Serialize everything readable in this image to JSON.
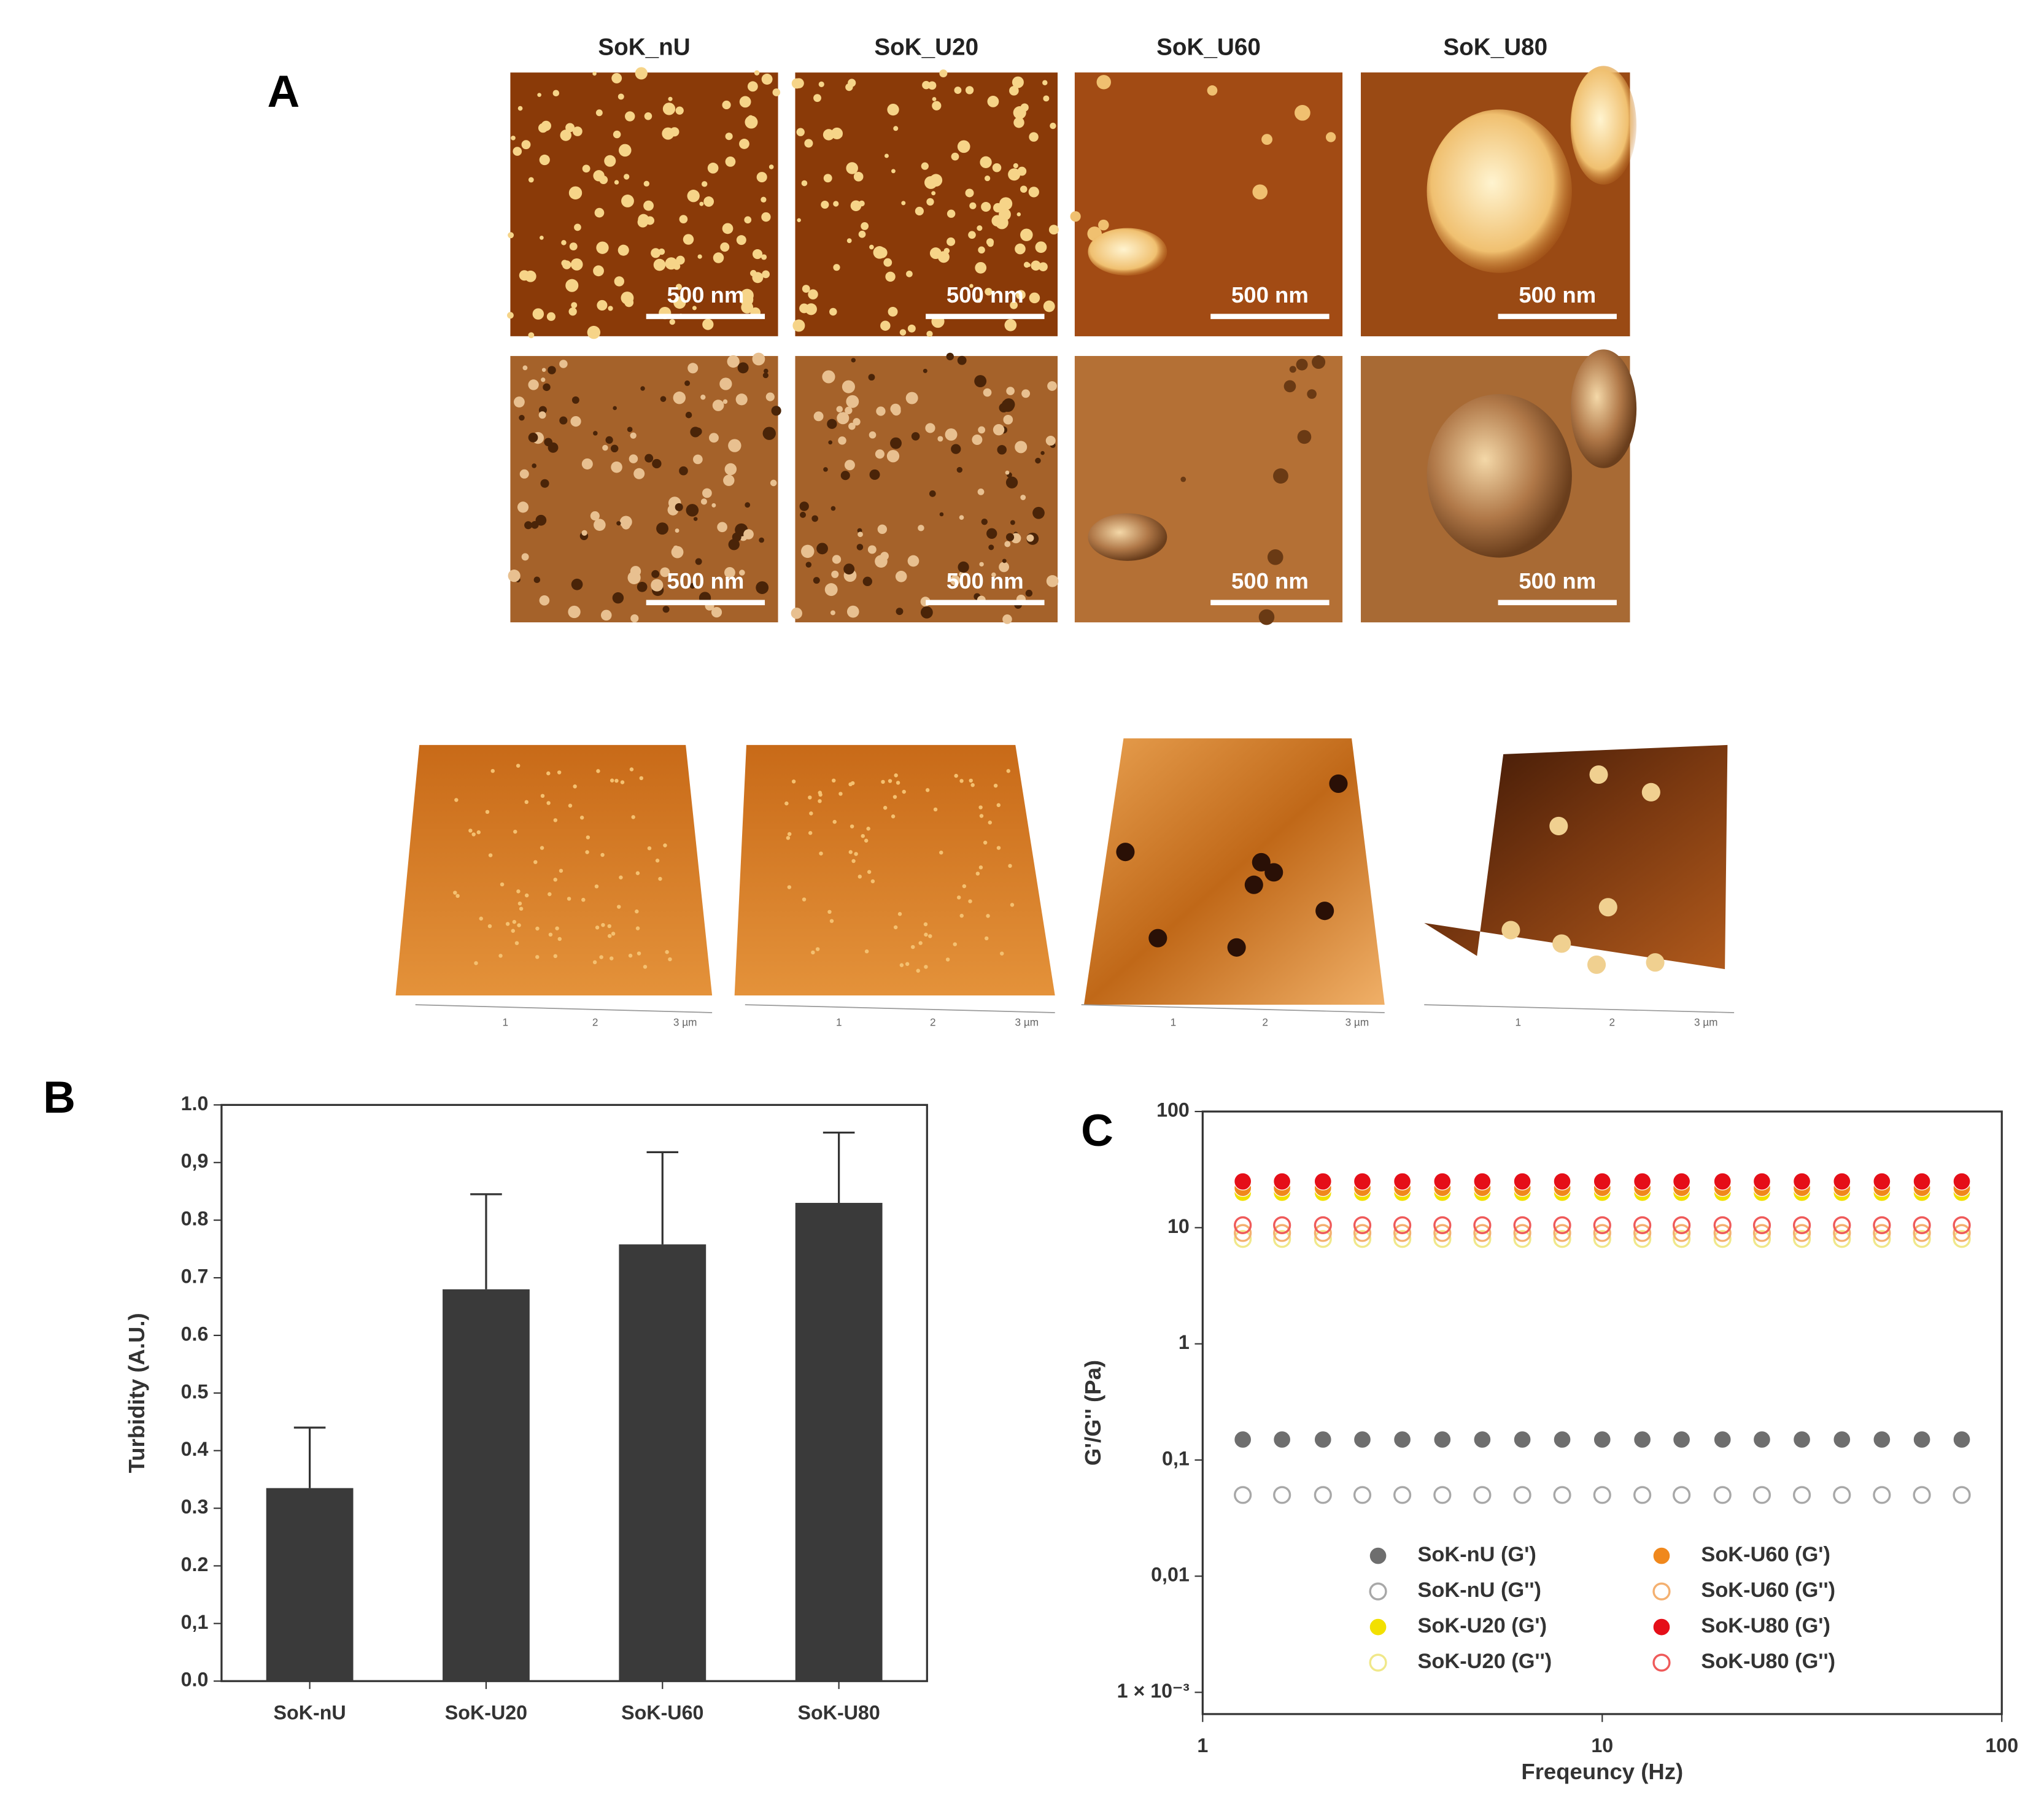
{
  "panel_a": {
    "label": "A",
    "columns": [
      "SoK_nU",
      "SoK_U20",
      "SoK_U60",
      "SoK_U80"
    ],
    "scale_bar": "500 nm",
    "axis_ticks_3d": [
      "1",
      "2",
      "3 µm"
    ]
  },
  "chart_data": [
    {
      "type": "bar",
      "panel_label": "B",
      "y_label": "Turbidity (A.U.)",
      "categories": [
        "SoK-nU",
        "SoK-U20",
        "SoK-U60",
        "SoK-U80"
      ],
      "values": [
        0.335,
        0.68,
        0.758,
        0.83
      ],
      "errors": [
        0.105,
        0.165,
        0.16,
        0.122
      ],
      "color": "#3a3a3a",
      "ylim": [
        0,
        1
      ],
      "yticks": [
        {
          "value": 0,
          "label": "0.0"
        },
        {
          "value": 0.1,
          "label": "0,1"
        },
        0.2,
        0.3,
        0.4,
        0.5,
        0.6,
        0.7,
        0.8,
        {
          "value": 0.9,
          "label": "0,9"
        },
        {
          "value": 1,
          "label": "1.0"
        }
      ]
    },
    {
      "type": "scatter",
      "panel_label": "C",
      "x_label": "Freqeuncy (Hz)",
      "y_label": "G'/G'' (Pa)",
      "log_x": true,
      "log_y": true,
      "xlim": [
        1,
        100
      ],
      "xticks": [
        1,
        10,
        100
      ],
      "ylim": [
        0.00065,
        100
      ],
      "yticks": [
        {
          "value": 0.001,
          "label": "1 × 10⁻³"
        },
        {
          "value": 0.01,
          "label": "0,01"
        },
        {
          "value": 0.1,
          "label": "0,1"
        },
        1,
        10,
        100
      ],
      "x": [
        1.26,
        1.58,
        2,
        2.51,
        3.16,
        3.98,
        5.01,
        6.31,
        7.94,
        10,
        12.6,
        15.8,
        20,
        25.1,
        31.6,
        39.8,
        50.1,
        63.1,
        79.4
      ],
      "series": [
        {
          "name": "SoK-nU (G')",
          "color": "#6e6e6e",
          "filled": true,
          "values": [
            0.15,
            0.15,
            0.15,
            0.15,
            0.15,
            0.15,
            0.15,
            0.15,
            0.15,
            0.15,
            0.15,
            0.15,
            0.15,
            0.15,
            0.15,
            0.15,
            0.15,
            0.15,
            0.15
          ]
        },
        {
          "name": "SoK-nU (G'')",
          "color": "#a8a8a8",
          "filled": false,
          "values": [
            0.05,
            0.05,
            0.05,
            0.05,
            0.05,
            0.05,
            0.05,
            0.05,
            0.05,
            0.05,
            0.05,
            0.05,
            0.05,
            0.05,
            0.05,
            0.05,
            0.05,
            0.05,
            0.05
          ]
        },
        {
          "name": "SoK-U20 (G')",
          "color": "#f2e000",
          "filled": true,
          "values": [
            20,
            20,
            20,
            20,
            20,
            20,
            20,
            20,
            20,
            20,
            20,
            20,
            20,
            20,
            20,
            20,
            20,
            20,
            20
          ]
        },
        {
          "name": "SoK-U20 (G'')",
          "color": "#f0e88a",
          "filled": false,
          "values": [
            8,
            8,
            8,
            8,
            8,
            8,
            8,
            8,
            8,
            8,
            8,
            8,
            8,
            8,
            8,
            8,
            8,
            8,
            8
          ]
        },
        {
          "name": "SoK-U60 (G')",
          "color": "#f0881c",
          "filled": true,
          "values": [
            22,
            22,
            22,
            22,
            22,
            22,
            22,
            22,
            22,
            22,
            22,
            22,
            22,
            22,
            22,
            22,
            22,
            22,
            22
          ]
        },
        {
          "name": "SoK-U60 (G'')",
          "color": "#f4b070",
          "filled": false,
          "values": [
            9,
            9,
            9,
            9,
            9,
            9,
            9,
            9,
            9,
            9,
            9,
            9,
            9,
            9,
            9,
            9,
            9,
            9,
            9
          ]
        },
        {
          "name": "SoK-U80 (G')",
          "color": "#e50e18",
          "filled": true,
          "values": [
            25,
            25,
            25,
            25,
            25,
            25,
            25,
            25,
            25,
            25,
            25,
            25,
            25,
            25,
            25,
            25,
            25,
            25,
            25
          ]
        },
        {
          "name": "SoK-U80 (G'')",
          "color": "#ef5a5a",
          "filled": false,
          "values": [
            10.5,
            10.5,
            10.5,
            10.5,
            10.5,
            10.5,
            10.5,
            10.5,
            10.5,
            10.5,
            10.5,
            10.5,
            10.5,
            10.5,
            10.5,
            10.5,
            10.5,
            10.5,
            10.5
          ]
        }
      ]
    }
  ]
}
